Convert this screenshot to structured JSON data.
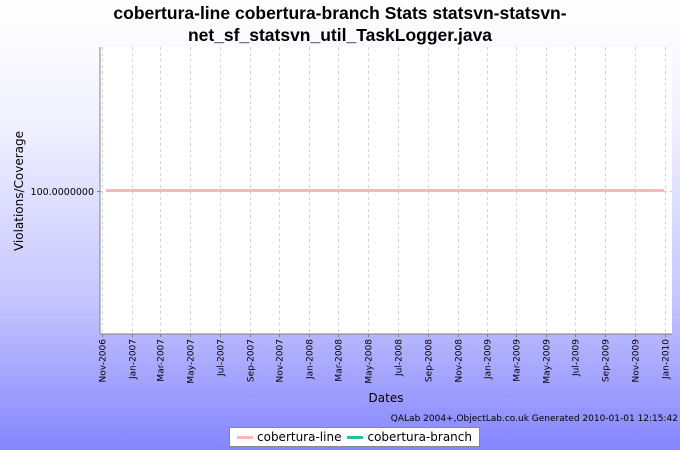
{
  "chart_data": {
    "type": "line",
    "title_line1": "cobertura-line cobertura-branch  Stats statsvn-statsvn-",
    "title_line2": "net_sf_statsvn_util_TaskLogger.java",
    "xlabel": "Dates",
    "ylabel": "Violations/Coverage",
    "x_ticks": [
      "Nov-2006",
      "Jan-2007",
      "Mar-2007",
      "May-2007",
      "Jul-2007",
      "Sep-2007",
      "Nov-2007",
      "Jan-2008",
      "Mar-2008",
      "May-2008",
      "Jul-2008",
      "Sep-2008",
      "Nov-2008",
      "Jan-2009",
      "Mar-2009",
      "May-2009",
      "Jul-2009",
      "Sep-2009",
      "Nov-2009",
      "Jan-2010"
    ],
    "y_ticks": [
      "100.0000000"
    ],
    "ylim": [
      99.5,
      100.5
    ],
    "series": [
      {
        "name": "cobertura-line",
        "color": "#ffb6b6",
        "x": [
          "2006-11-10",
          "2009-12-31"
        ],
        "y": [
          100,
          100
        ]
      },
      {
        "name": "cobertura-branch",
        "color": "#20c0a0",
        "x": [
          "2006-11-10",
          "2009-12-31"
        ],
        "y": [
          100,
          100
        ]
      }
    ],
    "grid": true,
    "legend": "bottom-center"
  },
  "footer": "QALab 2004+,ObjectLab.co.uk Generated 2010-01-01 12:15:42"
}
